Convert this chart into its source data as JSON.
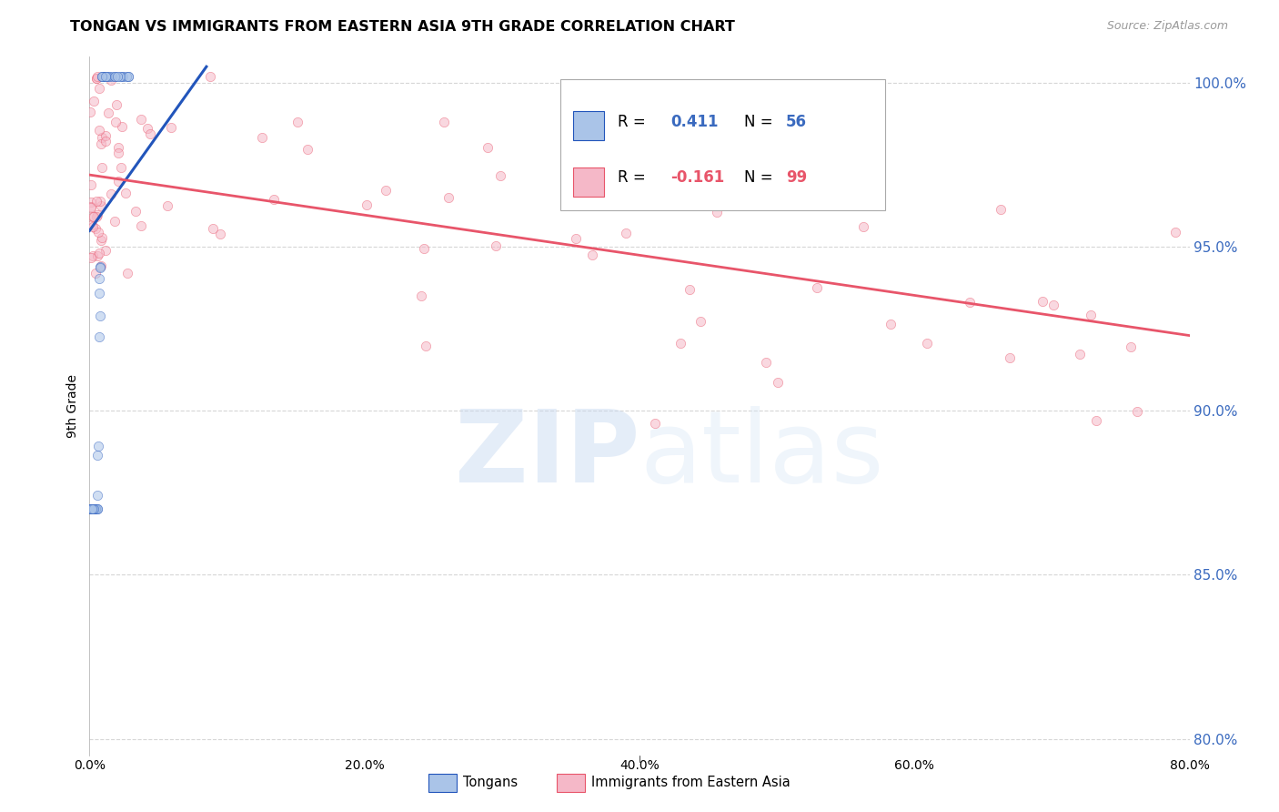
{
  "title": "TONGAN VS IMMIGRANTS FROM EASTERN ASIA 9TH GRADE CORRELATION CHART",
  "source": "Source: ZipAtlas.com",
  "ylabel": "9th Grade",
  "blue_marker_color": "#aac4e8",
  "pink_marker_color": "#f5b8c8",
  "blue_line_color": "#2255bb",
  "pink_line_color": "#e8556a",
  "xmin": 0.0,
  "xmax": 0.8,
  "ymin": 0.795,
  "ymax": 1.008,
  "yticks": [
    0.8,
    0.85,
    0.9,
    0.95,
    1.0
  ],
  "xticks": [
    0.0,
    0.2,
    0.4,
    0.6,
    0.8
  ],
  "xtick_labels": [
    "0.0%",
    "20.0%",
    "40.0%",
    "60.0%",
    "80.0%"
  ],
  "ytick_labels": [
    "80.0%",
    "85.0%",
    "90.0%",
    "95.0%",
    "100.0%"
  ],
  "marker_size": 55,
  "marker_alpha": 0.55,
  "background_color": "#ffffff",
  "grid_color": "#cccccc",
  "legend_R_color_blue": "#3a6abf",
  "legend_R_color_pink": "#e8556a",
  "blue_trend_x0": 0.0,
  "blue_trend_y0": 0.955,
  "blue_trend_x1": 0.085,
  "blue_trend_y1": 1.005,
  "pink_trend_x0": 0.0,
  "pink_trend_y0": 0.972,
  "pink_trend_x1": 0.8,
  "pink_trend_y1": 0.923,
  "legend_label1": "Tongans",
  "legend_label2": "Immigrants from Eastern Asia",
  "legend_R1": "0.411",
  "legend_N1": "56",
  "legend_R2": "-0.161",
  "legend_N2": "99"
}
